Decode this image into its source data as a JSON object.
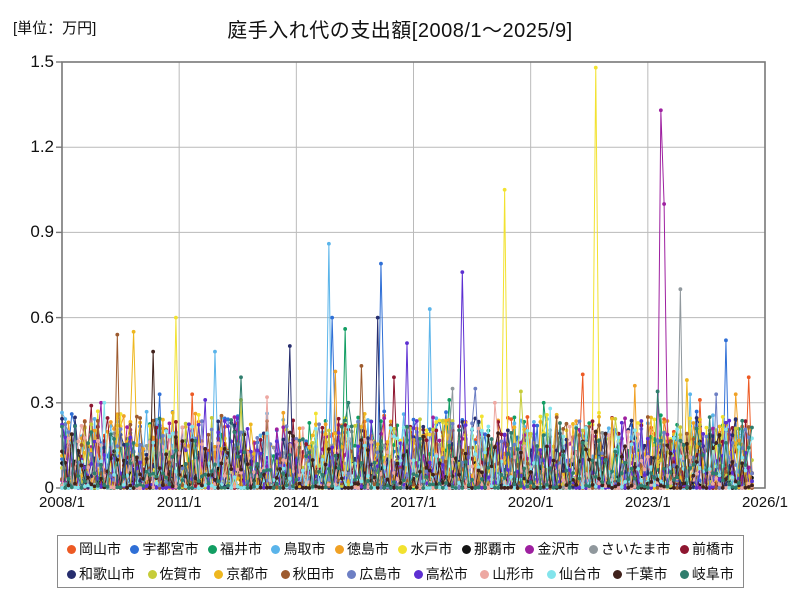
{
  "chart_data": {
    "type": "line",
    "title": "庭手入れ代の支出額[2008/1～2025/9]",
    "unit_label": "[単位：万円]",
    "xlabel": "",
    "ylabel": "万円",
    "ylim": [
      0,
      1.5
    ],
    "grid": true,
    "legend_position": "bottom",
    "axis_months": 216,
    "data_months": 213,
    "x_start": "2008/1",
    "x_data_end": "2025/9",
    "x_axis_end": "2026/1",
    "x_tick_labels": [
      "2008/1",
      "2011/1",
      "2014/1",
      "2017/1",
      "2020/1",
      "2023/1",
      "2026/1"
    ],
    "x_tick_month_index": [
      0,
      36,
      72,
      108,
      144,
      180,
      216
    ],
    "y_tick_labels": [
      "0",
      "0.3",
      "0.6",
      "0.9",
      "1.2",
      "1.5"
    ],
    "y_tick_values": [
      0,
      0.3,
      0.6,
      0.9,
      1.2,
      1.5
    ],
    "frame_color": "#787878",
    "grid_color": "#bababa",
    "noise_exponent": 2.6,
    "series": [
      {
        "name": "岡山市",
        "color": "#ed5a24",
        "base": 0.26,
        "seed": 101,
        "spikes": [
          [
            40,
            0.33
          ],
          [
            160,
            0.4
          ],
          [
            196,
            0.31
          ],
          [
            211,
            0.39
          ]
        ]
      },
      {
        "name": "宇都宮市",
        "color": "#2f6fd6",
        "base": 0.27,
        "seed": 102,
        "spikes": [
          [
            30,
            0.33
          ],
          [
            83,
            0.6
          ],
          [
            98,
            0.79
          ],
          [
            204,
            0.52
          ]
        ]
      },
      {
        "name": "福井市",
        "color": "#129e63",
        "base": 0.26,
        "seed": 103,
        "spikes": [
          [
            87,
            0.56
          ],
          [
            119,
            0.31
          ],
          [
            148,
            0.3
          ]
        ]
      },
      {
        "name": "鳥取市",
        "color": "#5ab4ea",
        "base": 0.27,
        "seed": 104,
        "spikes": [
          [
            47,
            0.48
          ],
          [
            82,
            0.86
          ],
          [
            113,
            0.63
          ],
          [
            193,
            0.33
          ]
        ]
      },
      {
        "name": "徳島市",
        "color": "#f0a125",
        "base": 0.27,
        "seed": 105,
        "spikes": [
          [
            84,
            0.41
          ],
          [
            176,
            0.36
          ],
          [
            207,
            0.33
          ]
        ]
      },
      {
        "name": "水戸市",
        "color": "#f2e230",
        "base": 0.28,
        "seed": 106,
        "spikes": [
          [
            35,
            0.6
          ],
          [
            136,
            1.05
          ],
          [
            164,
            1.48
          ]
        ]
      },
      {
        "name": "那覇市",
        "color": "#141414",
        "base": 0.1,
        "seed": 107,
        "spikes": [
          [
            150,
            0.18
          ]
        ]
      },
      {
        "name": "金沢市",
        "color": "#9e20a0",
        "base": 0.25,
        "seed": 108,
        "spikes": [
          [
            12,
            0.3
          ],
          [
            184,
            1.33
          ],
          [
            185,
            1.0
          ]
        ]
      },
      {
        "name": "さいたま市",
        "color": "#90989d",
        "base": 0.22,
        "seed": 109,
        "spikes": [
          [
            120,
            0.35
          ],
          [
            190,
            0.7
          ]
        ]
      },
      {
        "name": "前橋市",
        "color": "#8e1630",
        "base": 0.25,
        "seed": 110,
        "spikes": [
          [
            9,
            0.29
          ],
          [
            102,
            0.39
          ]
        ]
      },
      {
        "name": "和歌山市",
        "color": "#272e6e",
        "base": 0.25,
        "seed": 111,
        "spikes": [
          [
            70,
            0.5
          ],
          [
            97,
            0.6
          ]
        ]
      },
      {
        "name": "佐賀市",
        "color": "#c6cc39",
        "base": 0.25,
        "seed": 112,
        "spikes": [
          [
            55,
            0.31
          ],
          [
            141,
            0.34
          ]
        ]
      },
      {
        "name": "京都市",
        "color": "#eeb71f",
        "base": 0.27,
        "seed": 113,
        "spikes": [
          [
            22,
            0.55
          ],
          [
            192,
            0.38
          ]
        ]
      },
      {
        "name": "秋田市",
        "color": "#9d5b2f",
        "base": 0.26,
        "seed": 114,
        "spikes": [
          [
            17,
            0.54
          ],
          [
            92,
            0.43
          ]
        ]
      },
      {
        "name": "広島市",
        "color": "#6d7fc4",
        "base": 0.24,
        "seed": 115,
        "spikes": [
          [
            127,
            0.35
          ],
          [
            201,
            0.33
          ]
        ]
      },
      {
        "name": "高松市",
        "color": "#5d2fd2",
        "base": 0.25,
        "seed": 116,
        "spikes": [
          [
            44,
            0.31
          ],
          [
            106,
            0.51
          ],
          [
            123,
            0.76
          ]
        ]
      },
      {
        "name": "山形市",
        "color": "#eda8a2",
        "base": 0.22,
        "seed": 117,
        "spikes": [
          [
            63,
            0.32
          ],
          [
            133,
            0.3
          ]
        ]
      },
      {
        "name": "仙台市",
        "color": "#83e4ec",
        "base": 0.22,
        "seed": 118,
        "spikes": [
          [
            13,
            0.3
          ],
          [
            150,
            0.28
          ]
        ]
      },
      {
        "name": "千葉市",
        "color": "#40221c",
        "base": 0.2,
        "seed": 119,
        "spikes": [
          [
            28,
            0.48
          ]
        ]
      },
      {
        "name": "岐阜市",
        "color": "#2f7d6d",
        "base": 0.25,
        "seed": 120,
        "spikes": [
          [
            55,
            0.39
          ],
          [
            88,
            0.3
          ],
          [
            183,
            0.34
          ]
        ]
      }
    ]
  }
}
